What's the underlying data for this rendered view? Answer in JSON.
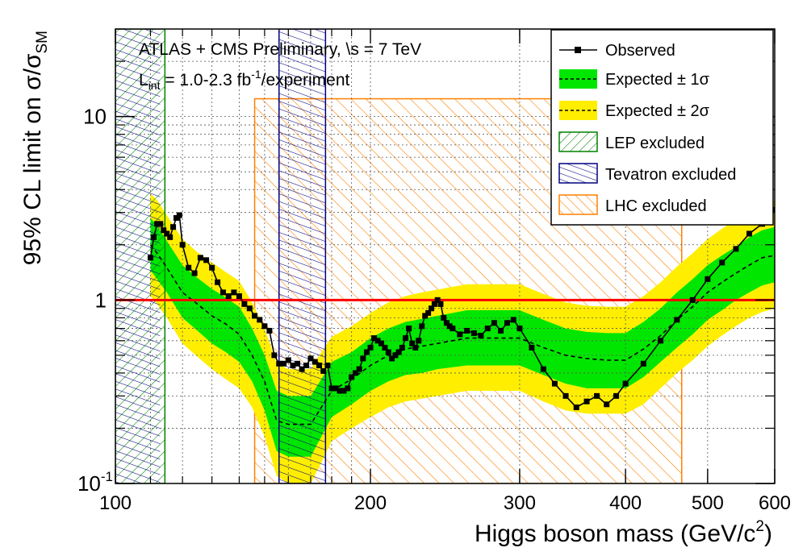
{
  "chart_data": {
    "type": "line",
    "header": {
      "line1": "ATLAS + CMS Preliminary, \\s = 7 TeV",
      "line2_main": "L",
      "line2_sub": "int",
      "line2_mid": " = 1.0-2.3 fb",
      "line2_sup": "-1",
      "line2_end": "/experiment"
    },
    "xlabel": {
      "main": "Higgs boson mass (GeV/c",
      "sup": "2",
      "end": ")"
    },
    "ylabel": {
      "main": "95% CL limit on σ/σ",
      "sub": "SM"
    },
    "x_scale": "log",
    "y_scale": "log",
    "xlim": [
      100,
      600
    ],
    "ylim": [
      0.1,
      30
    ],
    "x_ticks": [
      {
        "value": 100,
        "label": "100"
      },
      {
        "value": 200,
        "label": "200"
      },
      {
        "value": 300,
        "label": "300"
      },
      {
        "value": 400,
        "label": "400"
      },
      {
        "value": 500,
        "label": "500"
      },
      {
        "value": 600,
        "label": "600"
      }
    ],
    "y_ticks": [
      {
        "value": 0.1,
        "label_main": "10",
        "label_sup": "-1"
      },
      {
        "value": 1,
        "label_main": "1",
        "label_sup": ""
      },
      {
        "value": 10,
        "label_main": "10",
        "label_sup": ""
      }
    ],
    "grid": true,
    "sm_line": {
      "value": 1,
      "color": "#ff0000"
    },
    "legend": {
      "placement": "top-right",
      "entries": [
        {
          "key": "observed",
          "label": "Observed"
        },
        {
          "key": "band1",
          "label": "Expected ± 1σ"
        },
        {
          "key": "band2",
          "label": "Expected ± 2σ"
        },
        {
          "key": "lep",
          "label": "LEP excluded"
        },
        {
          "key": "tev",
          "label": "Tevatron excluded"
        },
        {
          "key": "lhc",
          "label": "LHC excluded"
        }
      ]
    },
    "colors": {
      "band1": "#00e600",
      "band2": "#ffee00",
      "lep": "#008000",
      "tevatron": "#000080",
      "lhc": "#ff8000",
      "observed": "#000000",
      "expected": "#000000"
    },
    "excluded_regions": {
      "lep": [
        100,
        114.4
      ],
      "tevatron": [
        156,
        177
      ],
      "lhc": [
        146,
        466
      ]
    },
    "expected": {
      "x": [
        110,
        112,
        115,
        120,
        125,
        130,
        135,
        140,
        145,
        150,
        155,
        160,
        165,
        170,
        175,
        180,
        190,
        200,
        210,
        220,
        230,
        240,
        250,
        260,
        270,
        280,
        290,
        300,
        320,
        340,
        360,
        380,
        400,
        420,
        440,
        460,
        480,
        500,
        520,
        540,
        560,
        580,
        600
      ],
      "y": [
        2.0,
        1.8,
        1.5,
        1.1,
        0.95,
        0.82,
        0.74,
        0.65,
        0.5,
        0.36,
        0.22,
        0.21,
        0.21,
        0.21,
        0.26,
        0.32,
        0.37,
        0.44,
        0.5,
        0.54,
        0.56,
        0.58,
        0.6,
        0.62,
        0.62,
        0.62,
        0.62,
        0.62,
        0.55,
        0.5,
        0.48,
        0.47,
        0.47,
        0.54,
        0.64,
        0.78,
        0.92,
        1.1,
        1.25,
        1.4,
        1.55,
        1.7,
        1.75
      ]
    },
    "band_1sigma": {
      "lower": [
        1.45,
        1.3,
        1.1,
        0.8,
        0.68,
        0.58,
        0.52,
        0.46,
        0.36,
        0.25,
        0.15,
        0.14,
        0.14,
        0.14,
        0.18,
        0.23,
        0.27,
        0.32,
        0.36,
        0.39,
        0.4,
        0.42,
        0.43,
        0.44,
        0.44,
        0.44,
        0.44,
        0.44,
        0.39,
        0.35,
        0.33,
        0.33,
        0.33,
        0.38,
        0.46,
        0.55,
        0.65,
        0.78,
        0.88,
        1.0,
        1.1,
        1.2,
        1.25
      ],
      "upper": [
        2.8,
        2.55,
        2.1,
        1.55,
        1.32,
        1.15,
        1.03,
        0.92,
        0.7,
        0.5,
        0.32,
        0.3,
        0.3,
        0.3,
        0.37,
        0.46,
        0.52,
        0.62,
        0.7,
        0.76,
        0.79,
        0.82,
        0.85,
        0.88,
        0.88,
        0.88,
        0.88,
        0.88,
        0.78,
        0.7,
        0.67,
        0.66,
        0.66,
        0.76,
        0.9,
        1.1,
        1.3,
        1.55,
        1.75,
        1.95,
        2.2,
        2.4,
        2.5
      ]
    },
    "band_2sigma": {
      "lower": [
        1.05,
        0.95,
        0.8,
        0.58,
        0.49,
        0.42,
        0.37,
        0.33,
        0.26,
        0.18,
        0.11,
        0.1,
        0.1,
        0.1,
        0.13,
        0.17,
        0.2,
        0.23,
        0.26,
        0.28,
        0.29,
        0.3,
        0.31,
        0.32,
        0.32,
        0.32,
        0.32,
        0.32,
        0.28,
        0.25,
        0.24,
        0.24,
        0.24,
        0.27,
        0.33,
        0.4,
        0.47,
        0.56,
        0.64,
        0.72,
        0.8,
        0.86,
        0.9
      ],
      "upper": [
        3.8,
        3.5,
        2.9,
        2.15,
        1.82,
        1.6,
        1.42,
        1.27,
        0.97,
        0.7,
        0.45,
        0.42,
        0.42,
        0.42,
        0.52,
        0.63,
        0.72,
        0.85,
        0.97,
        1.05,
        1.1,
        1.14,
        1.18,
        1.22,
        1.22,
        1.22,
        1.22,
        1.22,
        1.08,
        0.97,
        0.93,
        0.92,
        0.92,
        1.05,
        1.25,
        1.52,
        1.8,
        2.15,
        2.45,
        2.75,
        3.05,
        3.3,
        3.5
      ]
    },
    "observed": {
      "x": [
        110,
        111,
        112,
        113,
        114,
        115,
        116,
        117,
        118,
        119,
        120,
        122,
        124,
        126,
        128,
        130,
        132,
        134,
        136,
        138,
        140,
        142,
        144,
        146,
        148,
        150,
        152,
        154,
        156,
        158,
        160,
        162,
        164,
        166,
        168,
        170,
        172,
        174,
        176,
        178,
        180,
        182,
        184,
        186,
        188,
        190,
        192,
        194,
        196,
        198,
        200,
        202,
        204,
        206,
        208,
        210,
        212,
        214,
        216,
        218,
        220,
        222,
        224,
        226,
        228,
        230,
        232,
        234,
        236,
        238,
        240,
        242,
        244,
        246,
        248,
        250,
        255,
        260,
        265,
        270,
        275,
        280,
        285,
        290,
        295,
        300,
        310,
        320,
        330,
        340,
        350,
        360,
        370,
        380,
        390,
        400,
        420,
        440,
        460,
        480,
        500,
        520,
        540,
        560,
        580,
        600
      ],
      "y": [
        1.7,
        2.2,
        2.6,
        2.6,
        2.4,
        2.3,
        2.2,
        2.5,
        2.8,
        2.9,
        2.0,
        1.5,
        1.4,
        1.7,
        1.65,
        1.5,
        1.25,
        1.1,
        1.05,
        1.1,
        1.05,
        0.95,
        0.9,
        0.82,
        0.78,
        0.72,
        0.68,
        0.5,
        0.45,
        0.45,
        0.47,
        0.44,
        0.45,
        0.42,
        0.44,
        0.48,
        0.46,
        0.44,
        0.41,
        0.44,
        0.33,
        0.33,
        0.32,
        0.32,
        0.33,
        0.38,
        0.4,
        0.42,
        0.48,
        0.52,
        0.55,
        0.62,
        0.6,
        0.58,
        0.55,
        0.52,
        0.48,
        0.5,
        0.52,
        0.55,
        0.62,
        0.7,
        0.58,
        0.55,
        0.6,
        0.72,
        0.82,
        0.85,
        0.9,
        0.95,
        1.0,
        0.95,
        0.8,
        0.75,
        0.72,
        0.7,
        0.65,
        0.68,
        0.66,
        0.64,
        0.7,
        0.75,
        0.68,
        0.75,
        0.78,
        0.7,
        0.55,
        0.42,
        0.35,
        0.3,
        0.26,
        0.28,
        0.3,
        0.27,
        0.3,
        0.35,
        0.45,
        0.6,
        0.78,
        1.0,
        1.3,
        1.6,
        1.9,
        2.3,
        2.6,
        3.1
      ]
    }
  }
}
